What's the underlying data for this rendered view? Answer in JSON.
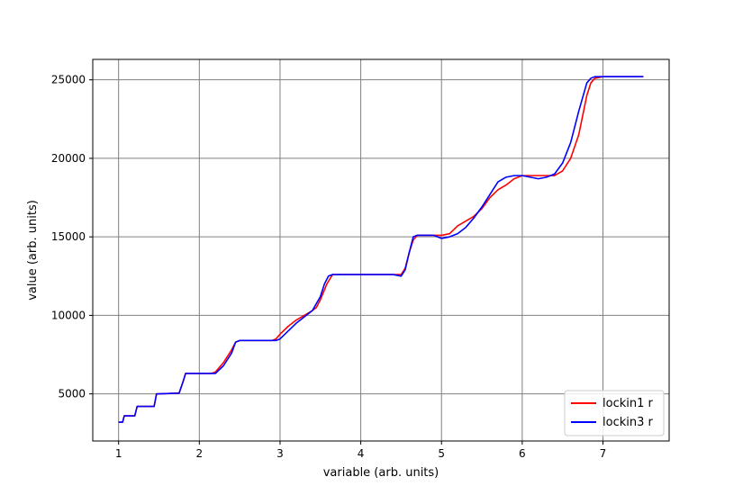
{
  "chart_data": {
    "type": "line",
    "title": "",
    "xlabel": "variable (arb. units)",
    "ylabel": "value (arb. units)",
    "xlim": [
      0.68,
      7.82
    ],
    "ylim": [
      2000,
      26300
    ],
    "x_ticks": [
      1,
      2,
      3,
      4,
      5,
      6,
      7
    ],
    "y_ticks": [
      5000,
      10000,
      15000,
      20000,
      25000
    ],
    "grid": true,
    "legend": "lower right",
    "series": [
      {
        "name": "lockin1 r",
        "color": "#ff0000",
        "points": [
          [
            1.0,
            3200
          ],
          [
            1.05,
            3200
          ],
          [
            1.07,
            3600
          ],
          [
            1.2,
            3600
          ],
          [
            1.23,
            4200
          ],
          [
            1.44,
            4200
          ],
          [
            1.47,
            5000
          ],
          [
            1.75,
            5050
          ],
          [
            1.8,
            5800
          ],
          [
            1.83,
            6300
          ],
          [
            2.0,
            6300
          ],
          [
            2.15,
            6300
          ],
          [
            2.2,
            6400
          ],
          [
            2.3,
            7000
          ],
          [
            2.4,
            7800
          ],
          [
            2.45,
            8300
          ],
          [
            2.5,
            8400
          ],
          [
            2.9,
            8400
          ],
          [
            2.95,
            8500
          ],
          [
            3.0,
            8800
          ],
          [
            3.1,
            9300
          ],
          [
            3.2,
            9700
          ],
          [
            3.3,
            10000
          ],
          [
            3.4,
            10300
          ],
          [
            3.45,
            10500
          ],
          [
            3.5,
            11000
          ],
          [
            3.58,
            12000
          ],
          [
            3.65,
            12600
          ],
          [
            4.0,
            12600
          ],
          [
            4.5,
            12600
          ],
          [
            4.55,
            13000
          ],
          [
            4.6,
            14000
          ],
          [
            4.65,
            14800
          ],
          [
            4.7,
            15100
          ],
          [
            5.0,
            15100
          ],
          [
            5.1,
            15200
          ],
          [
            5.2,
            15700
          ],
          [
            5.3,
            16000
          ],
          [
            5.4,
            16300
          ],
          [
            5.5,
            16800
          ],
          [
            5.6,
            17500
          ],
          [
            5.7,
            18000
          ],
          [
            5.8,
            18300
          ],
          [
            5.9,
            18700
          ],
          [
            6.0,
            18900
          ],
          [
            6.3,
            18900
          ],
          [
            6.4,
            18900
          ],
          [
            6.5,
            19200
          ],
          [
            6.6,
            20000
          ],
          [
            6.7,
            21500
          ],
          [
            6.8,
            24000
          ],
          [
            6.85,
            24800
          ],
          [
            6.9,
            25100
          ],
          [
            7.0,
            25200
          ],
          [
            7.5,
            25200
          ]
        ]
      },
      {
        "name": "lockin3 r",
        "color": "#0000ff",
        "points": [
          [
            1.0,
            3200
          ],
          [
            1.05,
            3200
          ],
          [
            1.07,
            3600
          ],
          [
            1.2,
            3600
          ],
          [
            1.23,
            4200
          ],
          [
            1.44,
            4200
          ],
          [
            1.47,
            5000
          ],
          [
            1.75,
            5050
          ],
          [
            1.8,
            5800
          ],
          [
            1.83,
            6300
          ],
          [
            2.0,
            6300
          ],
          [
            2.15,
            6300
          ],
          [
            2.2,
            6300
          ],
          [
            2.3,
            6800
          ],
          [
            2.4,
            7600
          ],
          [
            2.45,
            8300
          ],
          [
            2.5,
            8400
          ],
          [
            2.95,
            8400
          ],
          [
            3.0,
            8500
          ],
          [
            3.1,
            9000
          ],
          [
            3.2,
            9500
          ],
          [
            3.3,
            9900
          ],
          [
            3.4,
            10300
          ],
          [
            3.5,
            11200
          ],
          [
            3.55,
            12000
          ],
          [
            3.6,
            12500
          ],
          [
            3.65,
            12600
          ],
          [
            4.0,
            12600
          ],
          [
            4.4,
            12600
          ],
          [
            4.5,
            12500
          ],
          [
            4.55,
            12900
          ],
          [
            4.6,
            14000
          ],
          [
            4.65,
            15000
          ],
          [
            4.7,
            15100
          ],
          [
            4.9,
            15100
          ],
          [
            5.0,
            14900
          ],
          [
            5.1,
            15000
          ],
          [
            5.2,
            15200
          ],
          [
            5.3,
            15600
          ],
          [
            5.4,
            16200
          ],
          [
            5.5,
            16900
          ],
          [
            5.6,
            17700
          ],
          [
            5.7,
            18500
          ],
          [
            5.8,
            18800
          ],
          [
            5.9,
            18900
          ],
          [
            6.0,
            18900
          ],
          [
            6.1,
            18800
          ],
          [
            6.2,
            18700
          ],
          [
            6.3,
            18800
          ],
          [
            6.4,
            19000
          ],
          [
            6.5,
            19700
          ],
          [
            6.6,
            21000
          ],
          [
            6.7,
            23000
          ],
          [
            6.8,
            24800
          ],
          [
            6.85,
            25100
          ],
          [
            6.9,
            25200
          ],
          [
            7.0,
            25200
          ],
          [
            7.5,
            25200
          ]
        ]
      }
    ]
  }
}
